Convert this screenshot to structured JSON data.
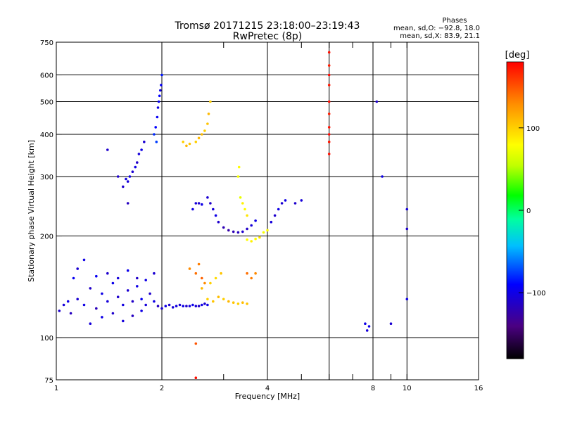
{
  "chart_data": {
    "type": "scatter",
    "title": "Tromsø 20171215 23:18:00–23:19:43",
    "subtitle": "RwPretec (8p)",
    "xlabel": "Frequency [MHz]",
    "ylabel": "Stationary phase Virtual Height [km]",
    "x_scale": "log",
    "y_scale": "log",
    "xlim": [
      1,
      16
    ],
    "ylim": [
      75,
      750
    ],
    "x_ticks": [
      1,
      2,
      4,
      8,
      10,
      16
    ],
    "x_tick_labels": [
      "1",
      "2",
      "4",
      "8",
      "10",
      "16"
    ],
    "x_minor": [
      3,
      5,
      6,
      7,
      9
    ],
    "y_ticks": [
      75,
      100,
      200,
      300,
      400,
      500,
      600,
      750
    ],
    "y_tick_labels": [
      "75",
      "100",
      "200",
      "300",
      "400",
      "500",
      "600",
      "750"
    ],
    "y_grid": [
      100,
      200,
      300,
      400,
      500,
      600
    ],
    "x_grid": [
      2,
      4,
      6,
      8,
      10
    ],
    "grid": true,
    "phases_box": {
      "title": "Phases",
      "line1": "mean, sd,O: −92.8, 18.0",
      "line2": "mean, sd,X:  83.9, 21.1"
    },
    "colorbar": {
      "label": "[deg]",
      "range": [
        -180,
        180
      ],
      "ticks": [
        100,
        0,
        -100
      ],
      "tick_labels": [
        "100",
        "0",
        "−100"
      ],
      "colors": [
        "#000000",
        "#4b0082",
        "#0000ff",
        "#00bfff",
        "#00ffa0",
        "#00ff00",
        "#c0ff00",
        "#ffff00",
        "#ff8c00",
        "#ff0000"
      ]
    },
    "series": [
      {
        "points": [
          [
            1.02,
            120,
            -110
          ],
          [
            1.05,
            125,
            -105
          ],
          [
            1.08,
            128,
            -100
          ],
          [
            1.1,
            118,
            -115
          ],
          [
            1.12,
            150,
            -95
          ],
          [
            1.15,
            130,
            -108
          ],
          [
            1.2,
            125,
            -100
          ],
          [
            1.25,
            140,
            -112
          ],
          [
            1.3,
            122,
            -118
          ],
          [
            1.35,
            135,
            -100
          ],
          [
            1.4,
            128,
            -105
          ],
          [
            1.45,
            145,
            -98
          ],
          [
            1.5,
            132,
            -110
          ],
          [
            1.55,
            125,
            -102
          ],
          [
            1.6,
            138,
            -108
          ],
          [
            1.65,
            128,
            -112
          ],
          [
            1.7,
            142,
            -100
          ],
          [
            1.75,
            130,
            -95
          ],
          [
            1.8,
            125,
            -105
          ],
          [
            1.85,
            135,
            -110
          ],
          [
            1.9,
            128,
            -100
          ],
          [
            1.95,
            124,
            -115
          ],
          [
            2.0,
            122,
            -108
          ],
          [
            2.05,
            124,
            -100
          ],
          [
            2.1,
            125,
            -110
          ],
          [
            2.15,
            123,
            -105
          ],
          [
            2.2,
            124,
            -102
          ],
          [
            2.25,
            125,
            -108
          ],
          [
            2.3,
            124,
            -100
          ],
          [
            2.35,
            124,
            -110
          ],
          [
            2.4,
            124,
            -104
          ],
          [
            2.45,
            125,
            -98
          ],
          [
            2.5,
            124,
            -106
          ],
          [
            2.55,
            124,
            -112
          ],
          [
            2.6,
            125,
            -100
          ],
          [
            2.65,
            126,
            -108
          ],
          [
            2.7,
            125,
            -100
          ],
          [
            1.3,
            152,
            -95
          ],
          [
            1.4,
            155,
            -110
          ],
          [
            1.5,
            150,
            -105
          ],
          [
            1.6,
            158,
            -98
          ],
          [
            1.7,
            150,
            -112
          ],
          [
            1.8,
            148,
            -100
          ],
          [
            1.9,
            155,
            -108
          ],
          [
            1.25,
            110,
            -105
          ],
          [
            1.35,
            115,
            -100
          ],
          [
            1.45,
            118,
            -110
          ],
          [
            1.55,
            112,
            -104
          ],
          [
            1.65,
            116,
            -115
          ],
          [
            1.75,
            120,
            -100
          ],
          [
            1.15,
            160,
            -108
          ],
          [
            1.2,
            170,
            -100
          ]
        ]
      },
      {
        "points": [
          [
            1.55,
            280,
            -110
          ],
          [
            1.6,
            290,
            -105
          ],
          [
            1.62,
            300,
            -100
          ],
          [
            1.65,
            310,
            -108
          ],
          [
            1.68,
            320,
            -100
          ],
          [
            1.7,
            330,
            -112
          ],
          [
            1.72,
            350,
            -105
          ],
          [
            1.75,
            360,
            -100
          ],
          [
            1.78,
            380,
            -108
          ],
          [
            1.5,
            300,
            -110
          ],
          [
            1.58,
            295,
            -102
          ]
        ]
      },
      {
        "points": [
          [
            1.9,
            400,
            -80
          ],
          [
            1.92,
            420,
            -90
          ],
          [
            1.94,
            450,
            -95
          ],
          [
            1.95,
            480,
            -100
          ],
          [
            1.96,
            500,
            -95
          ],
          [
            1.97,
            520,
            -90
          ],
          [
            1.98,
            540,
            -100
          ],
          [
            1.99,
            560,
            -95
          ],
          [
            2.0,
            600,
            -85
          ],
          [
            1.93,
            380,
            -75
          ]
        ]
      },
      {
        "points": [
          [
            2.45,
            240,
            -100
          ],
          [
            2.5,
            250,
            -105
          ],
          [
            2.55,
            250,
            -110
          ],
          [
            2.6,
            248,
            -100
          ],
          [
            2.7,
            260,
            -108
          ],
          [
            2.75,
            250,
            -112
          ],
          [
            2.8,
            240,
            -105
          ],
          [
            2.85,
            230,
            -100
          ],
          [
            2.9,
            220,
            -110
          ],
          [
            3.0,
            212,
            -120
          ],
          [
            3.1,
            208,
            -125
          ],
          [
            3.2,
            206,
            -120
          ],
          [
            3.3,
            205,
            -115
          ],
          [
            3.4,
            206,
            -110
          ],
          [
            3.5,
            210,
            -112
          ],
          [
            3.6,
            215,
            -105
          ],
          [
            3.7,
            222,
            -100
          ]
        ]
      },
      {
        "points": [
          [
            2.3,
            380,
            100
          ],
          [
            2.35,
            370,
            110
          ],
          [
            2.4,
            375,
            105
          ],
          [
            2.5,
            380,
            100
          ],
          [
            2.55,
            390,
            110
          ],
          [
            2.6,
            400,
            108
          ],
          [
            2.65,
            410,
            100
          ],
          [
            2.7,
            430,
            105
          ],
          [
            2.72,
            460,
            110
          ],
          [
            2.75,
            500,
            100
          ]
        ]
      },
      {
        "points": [
          [
            3.5,
            195,
            80
          ],
          [
            3.6,
            193,
            85
          ],
          [
            3.7,
            196,
            80
          ],
          [
            3.8,
            198,
            90
          ],
          [
            3.9,
            205,
            75
          ],
          [
            4.0,
            208,
            80
          ],
          [
            3.35,
            260,
            70
          ],
          [
            3.4,
            250,
            85
          ],
          [
            3.45,
            240,
            80
          ],
          [
            3.5,
            230,
            90
          ],
          [
            3.3,
            300,
            75
          ],
          [
            3.32,
            320,
            80
          ]
        ]
      },
      {
        "points": [
          [
            2.7,
            130,
            100
          ],
          [
            2.8,
            128,
            105
          ],
          [
            2.9,
            132,
            108
          ],
          [
            3.0,
            130,
            100
          ],
          [
            3.1,
            128,
            110
          ],
          [
            3.2,
            127,
            105
          ],
          [
            3.3,
            126,
            100
          ],
          [
            3.4,
            127,
            108
          ],
          [
            3.5,
            126,
            105
          ],
          [
            2.6,
            140,
            110
          ],
          [
            2.75,
            145,
            100
          ],
          [
            2.85,
            150,
            95
          ],
          [
            2.95,
            155,
            105
          ]
        ]
      },
      {
        "points": [
          [
            2.4,
            160,
            130
          ],
          [
            2.5,
            155,
            140
          ],
          [
            2.55,
            165,
            135
          ],
          [
            2.6,
            150,
            145
          ],
          [
            2.65,
            145,
            130
          ],
          [
            3.5,
            155,
            140
          ],
          [
            3.6,
            150,
            135
          ],
          [
            3.7,
            155,
            130
          ]
        ]
      },
      {
        "points": [
          [
            4.1,
            220,
            -105
          ],
          [
            4.2,
            230,
            -110
          ],
          [
            4.3,
            240,
            -100
          ],
          [
            4.4,
            250,
            -108
          ],
          [
            4.5,
            255,
            -100
          ],
          [
            4.8,
            250,
            -110
          ],
          [
            5.0,
            255,
            -105
          ]
        ]
      },
      {
        "points": [
          [
            6.0,
            700,
            175
          ],
          [
            6.0,
            640,
            170
          ],
          [
            6.0,
            600,
            178
          ],
          [
            6.0,
            560,
            172
          ],
          [
            6.0,
            500,
            176
          ],
          [
            6.0,
            460,
            170
          ],
          [
            6.0,
            420,
            174
          ],
          [
            6.0,
            400,
            178
          ],
          [
            6.0,
            380,
            172
          ],
          [
            6.0,
            350,
            175
          ]
        ]
      },
      {
        "points": [
          [
            7.6,
            110,
            -100
          ],
          [
            7.7,
            105,
            -105
          ],
          [
            7.8,
            108,
            -100
          ],
          [
            8.5,
            300,
            -100
          ],
          [
            10.0,
            240,
            -105
          ],
          [
            10.0,
            210,
            -110
          ],
          [
            10.0,
            130,
            -100
          ],
          [
            9.0,
            110,
            -108
          ],
          [
            8.2,
            500,
            -110
          ]
        ]
      },
      {
        "points": [
          [
            2.5,
            96,
            150
          ],
          [
            2.5,
            76,
            175
          ],
          [
            1.6,
            250,
            -115
          ],
          [
            1.4,
            360,
            -110
          ]
        ]
      }
    ]
  }
}
